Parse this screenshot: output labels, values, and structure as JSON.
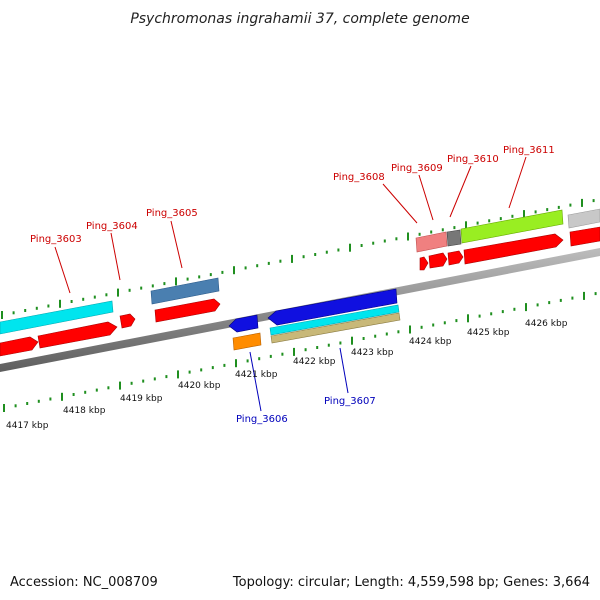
{
  "title": "Psychromonas ingrahamii 37, complete genome",
  "footer": {
    "accession": "Accession: NC_008709",
    "summary": "Topology: circular; Length: 4,559,598 bp; Genes: 3,664"
  },
  "scale_labels": [
    "4417 kbp",
    "4418 kbp",
    "4419 kbp",
    "4420 kbp",
    "4421 kbp",
    "4422 kbp",
    "4423 kbp",
    "4424 kbp",
    "4425 kbp",
    "4426 kbp"
  ],
  "gene_labels_top": [
    "Ping_3603",
    "Ping_3604",
    "Ping_3605",
    "Ping_3608",
    "Ping_3609",
    "Ping_3610",
    "Ping_3611"
  ],
  "gene_labels_bottom": [
    "Ping_3606",
    "Ping_3607"
  ],
  "colors": {
    "cds_red": "#ff0000",
    "cyan": "#00e5ee",
    "steel_blue": "#4a7fb0",
    "blue": "#1010e0",
    "orange": "#ff8c00",
    "khaki": "#c8b878",
    "lime": "#99ee22",
    "salmon": "#f08080",
    "grey": "#777777",
    "light_grey": "#c8c8c8",
    "tick_green": "#1f8f1f",
    "backbone": "#888888"
  }
}
